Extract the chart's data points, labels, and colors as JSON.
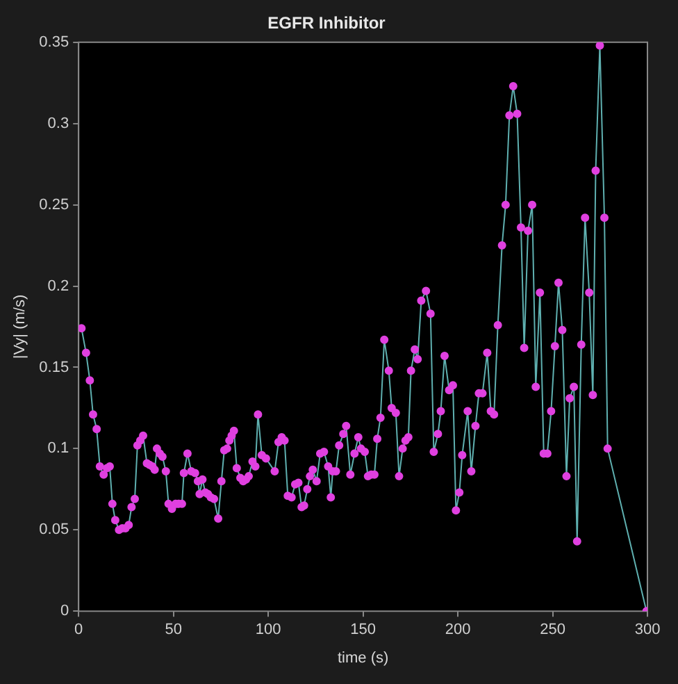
{
  "chart_data": {
    "type": "line",
    "title": "EGFR Inhibitor",
    "xlabel": "time (s)",
    "ylabel": "|Vy| (m/s)",
    "marker": "circle",
    "line_style": "solid",
    "xlim": [
      0,
      300
    ],
    "xticks": [
      0,
      50,
      100,
      150,
      200,
      250,
      300
    ],
    "ylim": [
      0,
      0.35
    ],
    "yticks": [
      0,
      0.05,
      0.1,
      0.15,
      0.2,
      0.25,
      0.3,
      0.35
    ],
    "legend": false,
    "series": [
      {
        "color": "#e040e0",
        "x": [
          1.5,
          3.9,
          5.9,
          7.6,
          9.5,
          11.2,
          13.2,
          14.9,
          16.4,
          17.8,
          19.3,
          21.3,
          23,
          24.7,
          26.4,
          27.9,
          29.6,
          31,
          32.5,
          34,
          36,
          37.4,
          38.9,
          40.1,
          41.3,
          42.8,
          44.2,
          46,
          47.4,
          49.2,
          51.1,
          52.8,
          54.5,
          55.5,
          57.4,
          59.4,
          61.4,
          62.9,
          63.8,
          65.3,
          66.8,
          68.2,
          69.7,
          71.4,
          73.6,
          75.3,
          76.8,
          78.3,
          79.5,
          80.7,
          81.9,
          83.4,
          85.3,
          86.8,
          88.3,
          89.7,
          91.7,
          93.2,
          94.6,
          96.6,
          98.8,
          103.4,
          105.4,
          107.1,
          108.6,
          110.3,
          112.3,
          114.2,
          115.9,
          117.6,
          118.9,
          120.6,
          122,
          123.5,
          125.5,
          127.4,
          129.4,
          131.6,
          133,
          134,
          135.7,
          137.4,
          139.6,
          141.1,
          143.3,
          145.5,
          147.5,
          148.9,
          150.9,
          152.6,
          154.3,
          156,
          157.5,
          159.2,
          161.2,
          163.6,
          165.1,
          167.3,
          169,
          170.9,
          172.4,
          173.9,
          175.3,
          177.3,
          178.8,
          180.7,
          183.2,
          185.6,
          187.3,
          189.5,
          191,
          193,
          195.4,
          197.4,
          199,
          200.8,
          202.3,
          205.2,
          207.1,
          209.3,
          211.1,
          213,
          215.5,
          217.4,
          219.1,
          221.1,
          223.3,
          225.2,
          227.2,
          229.2,
          231.3,
          233.3,
          235,
          237,
          239.2,
          241.1,
          243.3,
          245.3,
          247.2,
          249.2,
          251.2,
          253.1,
          255.1,
          257.3,
          259,
          261.2,
          262.9,
          265.1,
          267.1,
          269.3,
          271.2,
          272.7,
          274.9,
          277.3,
          279,
          299.5
        ],
        "values": [
          0.174,
          0.159,
          0.142,
          0.121,
          0.112,
          0.089,
          0.084,
          0.088,
          0.089,
          0.066,
          0.056,
          0.05,
          0.051,
          0.051,
          0.053,
          0.064,
          0.069,
          0.102,
          0.105,
          0.108,
          0.091,
          0.09,
          0.089,
          0.087,
          0.1,
          0.097,
          0.095,
          0.086,
          0.066,
          0.063,
          0.066,
          0.066,
          0.066,
          0.085,
          0.097,
          0.086,
          0.085,
          0.08,
          0.072,
          0.081,
          0.073,
          0.072,
          0.07,
          0.069,
          0.057,
          0.08,
          0.099,
          0.1,
          0.105,
          0.108,
          0.111,
          0.088,
          0.082,
          0.08,
          0.081,
          0.083,
          0.092,
          0.089,
          0.121,
          0.096,
          0.094,
          0.086,
          0.104,
          0.107,
          0.105,
          0.071,
          0.07,
          0.078,
          0.079,
          0.064,
          0.065,
          0.075,
          0.083,
          0.087,
          0.08,
          0.097,
          0.098,
          0.089,
          0.07,
          0.086,
          0.086,
          0.102,
          0.109,
          0.114,
          0.084,
          0.097,
          0.107,
          0.1,
          0.098,
          0.083,
          0.084,
          0.084,
          0.106,
          0.119,
          0.167,
          0.148,
          0.125,
          0.122,
          0.083,
          0.1,
          0.105,
          0.107,
          0.148,
          0.161,
          0.155,
          0.191,
          0.197,
          0.183,
          0.098,
          0.109,
          0.123,
          0.157,
          0.136,
          0.139,
          0.062,
          0.073,
          0.096,
          0.123,
          0.086,
          0.114,
          0.134,
          0.134,
          0.159,
          0.123,
          0.121,
          0.176,
          0.225,
          0.25,
          0.305,
          0.323,
          0.306,
          0.236,
          0.162,
          0.234,
          0.25,
          0.138,
          0.196,
          0.097,
          0.097,
          0.123,
          0.163,
          0.202,
          0.173,
          0.083,
          0.131,
          0.138,
          0.043,
          0.164,
          0.242,
          0.196,
          0.133,
          0.271,
          0.348,
          0.242,
          0.1,
          0
        ]
      }
    ]
  }
}
